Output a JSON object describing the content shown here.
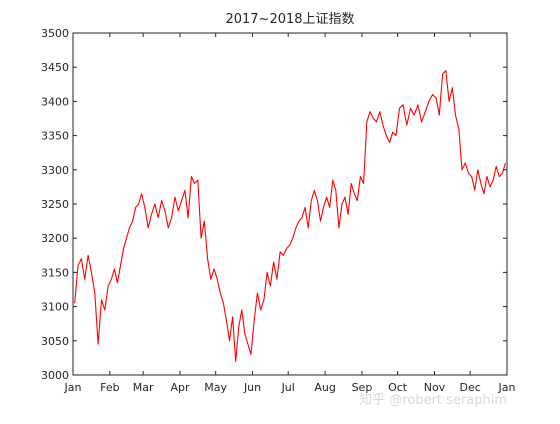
{
  "watermark": "知乎 @robert seraphim",
  "chart_data": {
    "type": "line",
    "title": "2017~2018上证指数",
    "xlabel": "",
    "ylabel": "",
    "x_tick_labels": [
      "Jan",
      "Feb",
      "Mar",
      "Apr",
      "May",
      "Jun",
      "Jul",
      "Aug",
      "Sep",
      "Oct",
      "Nov",
      "Dec",
      "Jan"
    ],
    "y_tick_labels": [
      "3000",
      "3050",
      "3100",
      "3150",
      "3200",
      "3250",
      "3300",
      "3350",
      "3400",
      "3450",
      "3500"
    ],
    "ylim": [
      3000,
      3500
    ],
    "xlim": [
      "2017-01-01",
      "2018-01-01"
    ],
    "grid": false,
    "legend": "none",
    "series_color": "#ff0000",
    "series": [
      {
        "values_by_month": [
          {
            "month": "2017-01",
            "values": [
              3105,
              3160,
              3170,
              3140,
              3175,
              3150,
              3120,
              3045,
              3110,
              3095,
              3130
            ]
          },
          {
            "month": "2017-02",
            "values": [
              3140,
              3155,
              3135,
              3160,
              3185,
              3200,
              3215,
              3225,
              3245,
              3250,
              3265
            ]
          },
          {
            "month": "2017-03",
            "values": [
              3245,
              3215,
              3235,
              3250,
              3230,
              3255,
              3240,
              3215,
              3230,
              3260,
              3240
            ]
          },
          {
            "month": "2017-04",
            "values": [
              3255,
              3270,
              3230,
              3290,
              3280,
              3285,
              3200,
              3225,
              3170,
              3140,
              3155
            ]
          },
          {
            "month": "2017-05",
            "values": [
              3140,
              3120,
              3105,
              3080,
              3050,
              3085,
              3020,
              3070,
              3095,
              3060,
              3045,
              3030
            ]
          },
          {
            "month": "2017-06",
            "values": [
              3080,
              3120,
              3095,
              3110,
              3150,
              3130,
              3165,
              3140,
              3180,
              3175,
              3185
            ]
          },
          {
            "month": "2017-07",
            "values": [
              3190,
              3200,
              3215,
              3225,
              3230,
              3245,
              3215,
              3255,
              3270,
              3255,
              3225,
              3245
            ]
          },
          {
            "month": "2017-08",
            "values": [
              3260,
              3245,
              3285,
              3270,
              3215,
              3250,
              3260,
              3235,
              3280,
              3265,
              3255,
              3290
            ]
          },
          {
            "month": "2017-09",
            "values": [
              3280,
              3370,
              3385,
              3375,
              3370,
              3385,
              3365,
              3350,
              3340,
              3355,
              3350
            ]
          },
          {
            "month": "2017-10",
            "values": [
              3390,
              3395,
              3365,
              3390,
              3380,
              3395,
              3370,
              3385,
              3400,
              3410
            ]
          },
          {
            "month": "2017-11",
            "values": [
              3405,
              3380,
              3440,
              3445,
              3400,
              3420,
              3380,
              3360,
              3300,
              3310,
              3295
            ]
          },
          {
            "month": "2017-12",
            "values": [
              3290,
              3270,
              3300,
              3280,
              3265,
              3290,
              3275,
              3285,
              3305,
              3290,
              3295,
              3310
            ]
          }
        ]
      }
    ]
  }
}
